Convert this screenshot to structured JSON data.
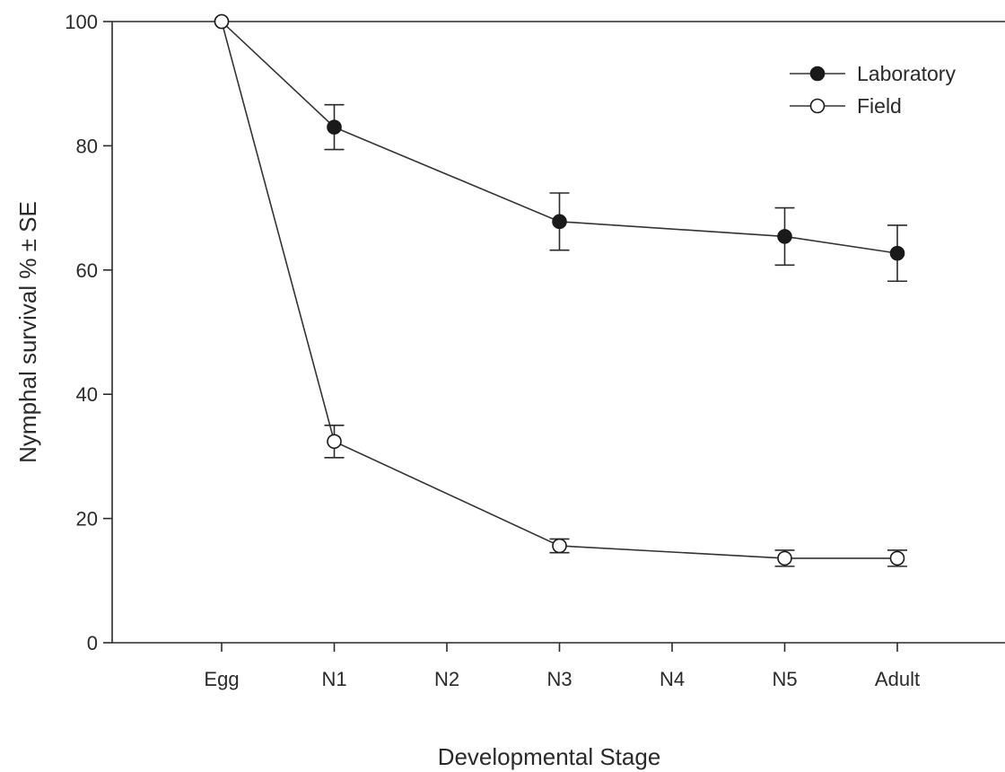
{
  "chart_data": {
    "type": "line",
    "categories": [
      "Egg",
      "N1",
      "N2",
      "N3",
      "N4",
      "N5",
      "Adult"
    ],
    "xlabel": "Developmental Stage",
    "ylabel": "Nymphal survival % ± SE",
    "ylim": [
      0,
      100
    ],
    "yticks": [
      0,
      20,
      40,
      60,
      80,
      100
    ],
    "grid": false,
    "legend_position": "top-right",
    "series": [
      {
        "name": "Laboratory",
        "marker": "filled-circle",
        "points": [
          {
            "x": "Egg",
            "y": 100,
            "se": 0
          },
          {
            "x": "N1",
            "y": 83,
            "se": 3.6
          },
          {
            "x": "N3",
            "y": 67.8,
            "se": 4.6
          },
          {
            "x": "N5",
            "y": 65.4,
            "se": 4.6
          },
          {
            "x": "Adult",
            "y": 62.7,
            "se": 4.5
          }
        ]
      },
      {
        "name": "Field",
        "marker": "open-circle",
        "points": [
          {
            "x": "Egg",
            "y": 100,
            "se": 0
          },
          {
            "x": "N1",
            "y": 32.4,
            "se": 2.6
          },
          {
            "x": "N3",
            "y": 15.6,
            "se": 1.1
          },
          {
            "x": "N5",
            "y": 13.6,
            "se": 1.3
          },
          {
            "x": "Adult",
            "y": 13.6,
            "se": 1.3
          }
        ]
      }
    ]
  }
}
